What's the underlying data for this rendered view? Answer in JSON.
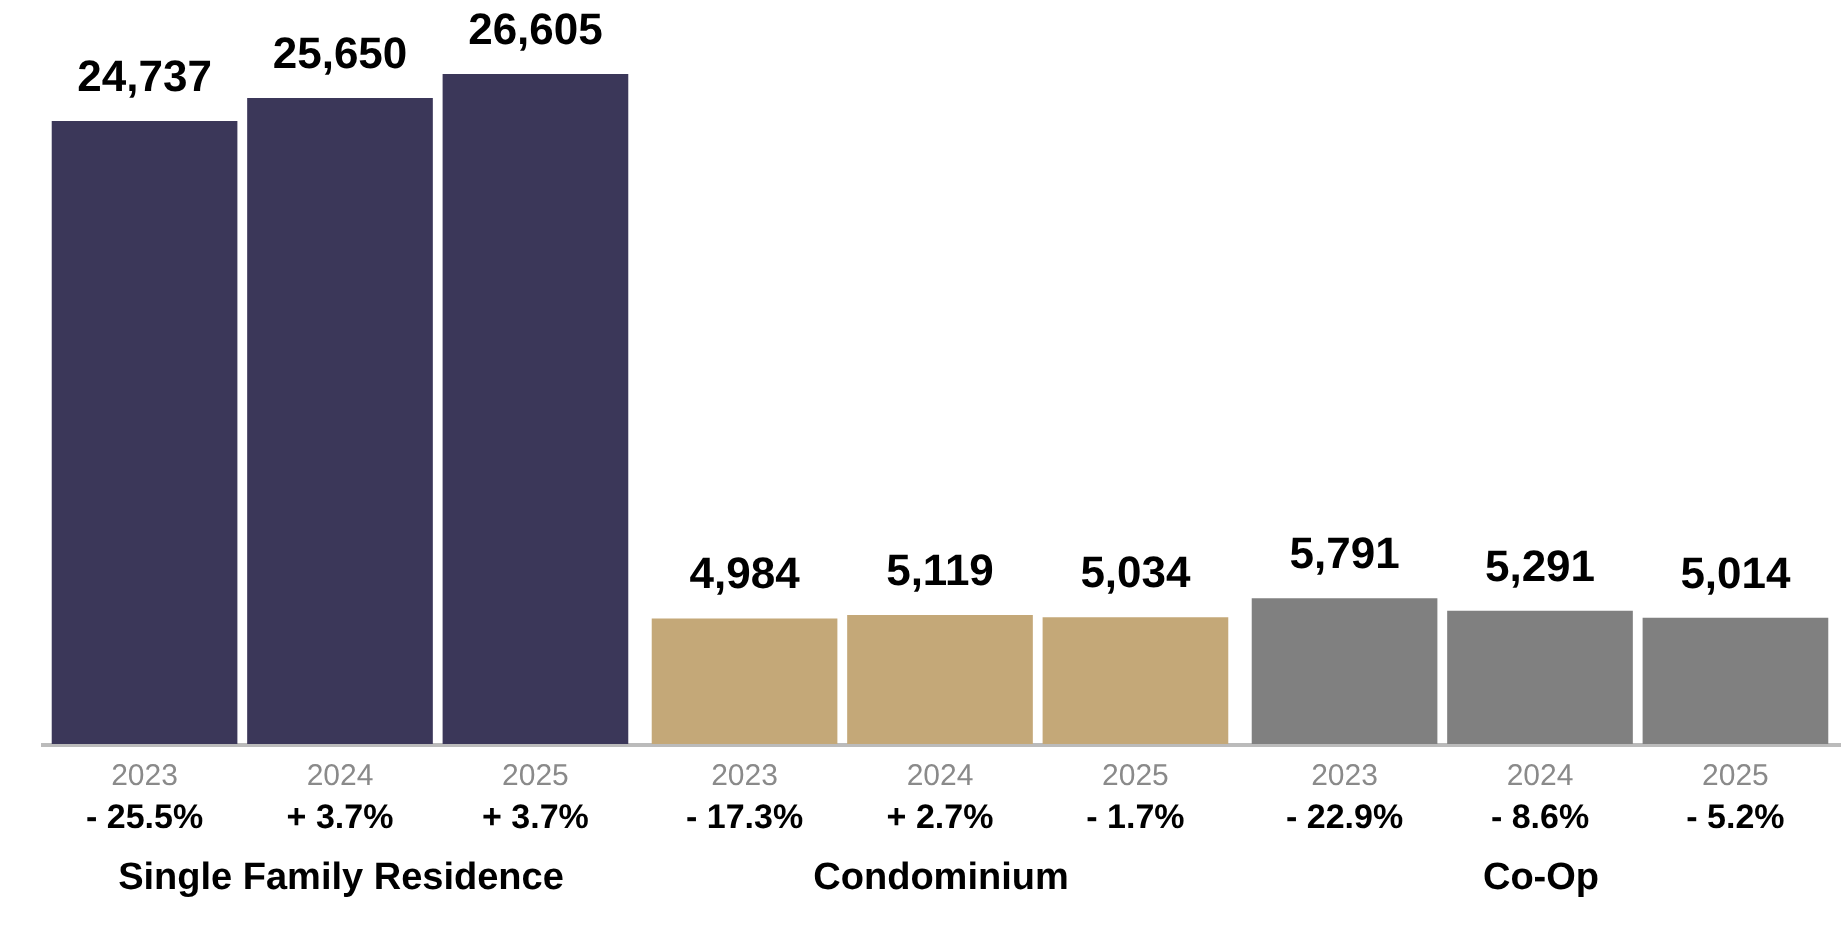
{
  "chart_data": [
    {
      "type": "bar",
      "xlabel": "Single Family Residence",
      "categories": [
        "2023",
        "2024",
        "2025"
      ],
      "values": [
        24737,
        25650,
        26605
      ],
      "color": "#3b3759",
      "value_labels": [
        "24,737",
        "25,650",
        "26,605"
      ],
      "tick_labels": "x",
      "grid": false,
      "annotations": [
        "- 25.5%",
        "+ 3.7%",
        "+ 3.7%"
      ]
    },
    {
      "type": "bar",
      "xlabel": "Condominium",
      "categories": [
        "2023",
        "2024",
        "2025"
      ],
      "values": [
        4984,
        5119,
        5034
      ],
      "color": "#c4a878",
      "value_labels": [
        "4,984",
        "5,119",
        "5,034"
      ],
      "tick_labels": "x",
      "grid": false,
      "annotations": [
        "- 17.3%",
        "+ 2.7%",
        "- 1.7%"
      ]
    },
    {
      "type": "bar",
      "xlabel": "Co-Op",
      "categories": [
        "2023",
        "2024",
        "2025"
      ],
      "values": [
        5791,
        5291,
        5014
      ],
      "color": "#808080",
      "value_labels": [
        "5,791",
        "5,291",
        "5,014"
      ],
      "tick_labels": "x",
      "grid": false,
      "annotations": [
        "- 22.9%",
        "- 8.6%",
        "- 5.2%"
      ]
    }
  ]
}
